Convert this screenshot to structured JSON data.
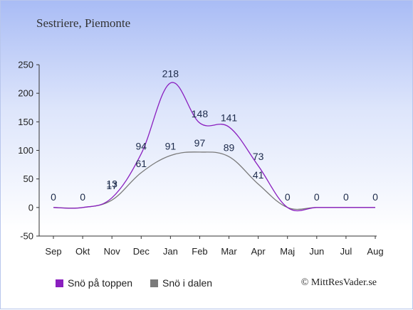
{
  "chart_data": {
    "type": "line",
    "title": "Sestriere, Piemonte",
    "categories": [
      "Sep",
      "Okt",
      "Nov",
      "Dec",
      "Jan",
      "Feb",
      "Mar",
      "Apr",
      "Maj",
      "Jun",
      "Jul",
      "Aug"
    ],
    "ylim": [
      -50,
      250
    ],
    "yticks": [
      "-50",
      "0",
      "50",
      "100",
      "150",
      "200",
      "250"
    ],
    "grid": false,
    "legend_position": "bottom-left",
    "series": [
      {
        "name": "Snö på toppen",
        "color": "#8a1fbf",
        "values": [
          0,
          0,
          17,
          94,
          218,
          148,
          141,
          73,
          0,
          0,
          0,
          0
        ]
      },
      {
        "name": "Snö i dalen",
        "color": "#7a7a7a",
        "values": [
          0,
          0,
          13,
          61,
          91,
          97,
          89,
          41,
          0,
          0,
          0,
          0
        ]
      }
    ]
  },
  "copyright": "© MittResVader.se"
}
